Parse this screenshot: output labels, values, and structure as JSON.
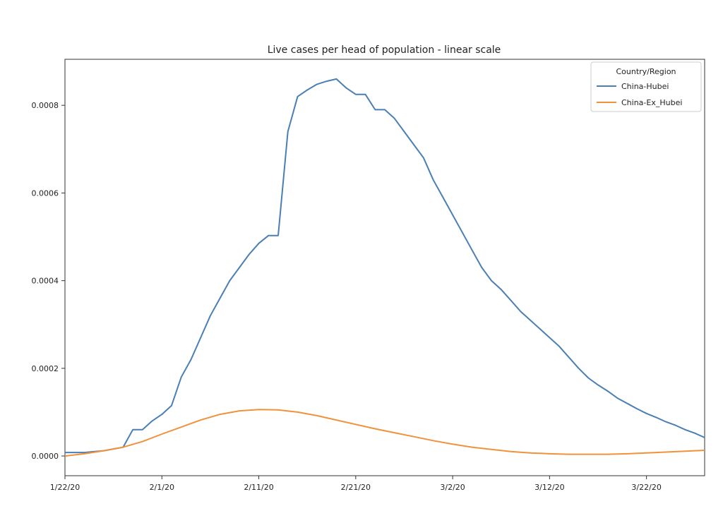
{
  "chart_data": {
    "type": "line",
    "title": "Live cases per head of population - linear scale",
    "xlabel": "",
    "ylabel": "",
    "x_start": "1/22/20",
    "x_end": "3/28/20",
    "x_ticks": [
      {
        "label": "1/22/20",
        "date": "1/22/20"
      },
      {
        "label": "2/1/20",
        "date": "2/1/20"
      },
      {
        "label": "2/11/20",
        "date": "2/11/20"
      },
      {
        "label": "2/21/20",
        "date": "2/21/20"
      },
      {
        "label": "3/2/20",
        "date": "3/2/20"
      },
      {
        "label": "3/12/20",
        "date": "3/12/20"
      },
      {
        "label": "3/22/20",
        "date": "3/22/20"
      }
    ],
    "ylim": [
      -4.5e-05,
      0.000905
    ],
    "y_ticks": [
      {
        "label": "0.0000",
        "value": 0.0
      },
      {
        "label": "0.0002",
        "value": 0.0002
      },
      {
        "label": "0.0004",
        "value": 0.0004
      },
      {
        "label": "0.0006",
        "value": 0.0006
      },
      {
        "label": "0.0008",
        "value": 0.0008
      }
    ],
    "grid": false,
    "legend": {
      "title": "Country/Region",
      "position": "top-right"
    },
    "series": [
      {
        "name": "China-Hubei",
        "color": "#4a7fb5",
        "points": [
          [
            "1/22/20",
            8e-06
          ],
          [
            "1/24/20",
            8e-06
          ],
          [
            "1/26/20",
            1.2e-05
          ],
          [
            "1/27/20",
            1.6e-05
          ],
          [
            "1/28/20",
            2e-05
          ],
          [
            "1/29/20",
            6e-05
          ],
          [
            "1/30/20",
            6e-05
          ],
          [
            "1/31/20",
            8e-05
          ],
          [
            "2/1/20",
            9.5e-05
          ],
          [
            "2/2/20",
            0.000115
          ],
          [
            "2/3/20",
            0.00018
          ],
          [
            "2/4/20",
            0.00022
          ],
          [
            "2/5/20",
            0.00027
          ],
          [
            "2/6/20",
            0.00032
          ],
          [
            "2/7/20",
            0.00036
          ],
          [
            "2/8/20",
            0.0004
          ],
          [
            "2/9/20",
            0.00043
          ],
          [
            "2/10/20",
            0.00046
          ],
          [
            "2/11/20",
            0.000485
          ],
          [
            "2/12/20",
            0.000503
          ],
          [
            "2/13/20",
            0.000503
          ],
          [
            "2/14/20",
            0.00074
          ],
          [
            "2/15/20",
            0.00082
          ],
          [
            "2/16/20",
            0.000835
          ],
          [
            "2/17/20",
            0.000848
          ],
          [
            "2/18/20",
            0.000855
          ],
          [
            "2/19/20",
            0.00086
          ],
          [
            "2/20/20",
            0.00084
          ],
          [
            "2/21/20",
            0.000825
          ],
          [
            "2/22/20",
            0.000825
          ],
          [
            "2/23/20",
            0.00079
          ],
          [
            "2/24/20",
            0.00079
          ],
          [
            "2/25/20",
            0.00077
          ],
          [
            "2/26/20",
            0.00074
          ],
          [
            "2/27/20",
            0.00071
          ],
          [
            "2/28/20",
            0.00068
          ],
          [
            "2/29/20",
            0.00063
          ],
          [
            "3/1/20",
            0.00059
          ],
          [
            "3/2/20",
            0.00055
          ],
          [
            "3/3/20",
            0.00051
          ],
          [
            "3/4/20",
            0.00047
          ],
          [
            "3/5/20",
            0.00043
          ],
          [
            "3/6/20",
            0.0004
          ],
          [
            "3/7/20",
            0.00038
          ],
          [
            "3/8/20",
            0.000355
          ],
          [
            "3/9/20",
            0.00033
          ],
          [
            "3/10/20",
            0.00031
          ],
          [
            "3/11/20",
            0.00029
          ],
          [
            "3/12/20",
            0.00027
          ],
          [
            "3/13/20",
            0.00025
          ],
          [
            "3/14/20",
            0.000225
          ],
          [
            "3/15/20",
            0.0002
          ],
          [
            "3/16/20",
            0.000178
          ],
          [
            "3/17/20",
            0.000162
          ],
          [
            "3/18/20",
            0.000148
          ],
          [
            "3/19/20",
            0.000132
          ],
          [
            "3/20/20",
            0.00012
          ],
          [
            "3/21/20",
            0.000108
          ],
          [
            "3/22/20",
            9.7e-05
          ],
          [
            "3/23/20",
            8.8e-05
          ],
          [
            "3/24/20",
            7.8e-05
          ],
          [
            "3/25/20",
            7e-05
          ],
          [
            "3/26/20",
            6e-05
          ],
          [
            "3/27/20",
            5.2e-05
          ],
          [
            "3/28/20",
            4.2e-05
          ]
        ]
      },
      {
        "name": "China-Ex_Hubei",
        "color": "#f0923a",
        "points": [
          [
            "1/22/20",
            0.0
          ],
          [
            "1/24/20",
            5e-06
          ],
          [
            "1/26/20",
            1.2e-05
          ],
          [
            "1/28/20",
            2e-05
          ],
          [
            "1/30/20",
            3.3e-05
          ],
          [
            "2/1/20",
            5e-05
          ],
          [
            "2/3/20",
            6.6e-05
          ],
          [
            "2/5/20",
            8.2e-05
          ],
          [
            "2/7/20",
            9.5e-05
          ],
          [
            "2/9/20",
            0.000103
          ],
          [
            "2/11/20",
            0.000106
          ],
          [
            "2/13/20",
            0.000105
          ],
          [
            "2/15/20",
            0.0001
          ],
          [
            "2/17/20",
            9.2e-05
          ],
          [
            "2/19/20",
            8.2e-05
          ],
          [
            "2/21/20",
            7.2e-05
          ],
          [
            "2/23/20",
            6.2e-05
          ],
          [
            "2/25/20",
            5.3e-05
          ],
          [
            "2/27/20",
            4.4e-05
          ],
          [
            "2/29/20",
            3.5e-05
          ],
          [
            "3/2/20",
            2.7e-05
          ],
          [
            "3/4/20",
            2e-05
          ],
          [
            "3/6/20",
            1.5e-05
          ],
          [
            "3/8/20",
            1e-05
          ],
          [
            "3/10/20",
            7e-06
          ],
          [
            "3/12/20",
            5e-06
          ],
          [
            "3/14/20",
            4e-06
          ],
          [
            "3/16/20",
            4e-06
          ],
          [
            "3/18/20",
            4e-06
          ],
          [
            "3/20/20",
            5e-06
          ],
          [
            "3/22/20",
            7e-06
          ],
          [
            "3/24/20",
            9e-06
          ],
          [
            "3/26/20",
            1.1e-05
          ],
          [
            "3/28/20",
            1.3e-05
          ]
        ]
      }
    ]
  }
}
